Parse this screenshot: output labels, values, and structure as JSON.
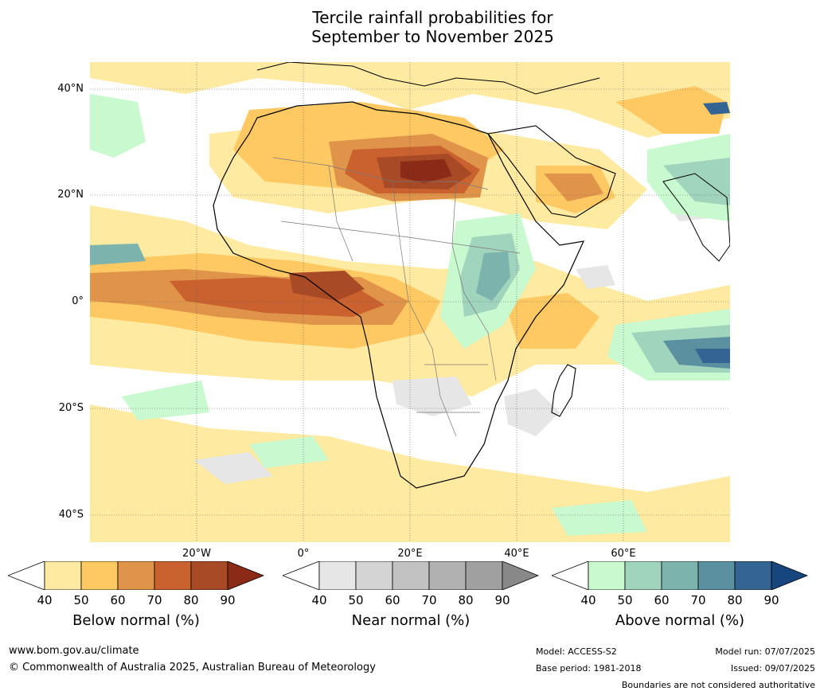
{
  "title_line1": "Tercile rainfall probabilities for",
  "title_line2": "September to November 2025",
  "lat_labels": [
    "40°N",
    "20°N",
    "0°",
    "20°S",
    "40°S"
  ],
  "lon_labels": [
    "20°W",
    "0°",
    "20°E",
    "40°E",
    "60°E"
  ],
  "colorbars": [
    {
      "label": "Below normal (%)",
      "ticks": [
        "40",
        "50",
        "60",
        "70",
        "80",
        "90"
      ],
      "colors": [
        "#ffffff",
        "#feeaa0",
        "#fec863",
        "#e09449",
        "#c9622f",
        "#a84a25",
        "#8b2b17"
      ]
    },
    {
      "label": "Near normal (%)",
      "ticks": [
        "40",
        "50",
        "60",
        "70",
        "80",
        "90"
      ],
      "colors": [
        "#ffffff",
        "#e6e6e6",
        "#d4d4d4",
        "#c2c2c2",
        "#b1b1b1",
        "#a0a0a0",
        "#888888"
      ]
    },
    {
      "label": "Above normal (%)",
      "ticks": [
        "40",
        "50",
        "60",
        "70",
        "80",
        "90"
      ],
      "colors": [
        "#ffffff",
        "#c9f9ce",
        "#a0d4bd",
        "#7db3ad",
        "#5a909f",
        "#346494",
        "#17467f"
      ]
    }
  ],
  "footer": {
    "url": "www.bom.gov.au/climate",
    "copyright": "© Commonwealth of Australia 2025, Australian Bureau of Meteorology",
    "model": "Model: ACCESS-S2",
    "base_period": "Base period: 1981-2018",
    "model_run": "Model run: 07/07/2025",
    "issued": "Issued: 09/07/2025",
    "disclaimer": "Boundaries are not considered authoritative"
  }
}
